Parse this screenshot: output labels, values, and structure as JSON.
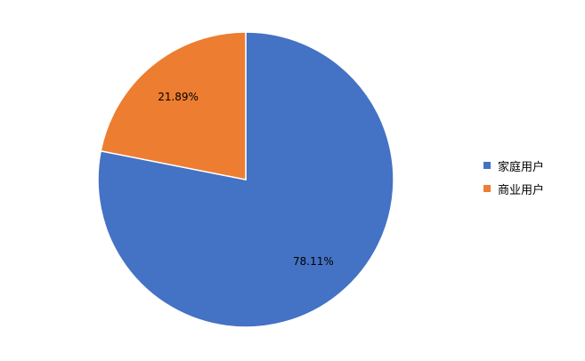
{
  "chart_data": {
    "type": "pie",
    "categories": [
      "家庭用户",
      "商业用户"
    ],
    "values": [
      78.11,
      21.89
    ],
    "value_labels": [
      "78.11%",
      "21.89%"
    ],
    "colors": [
      "#4472C4",
      "#ED7D31"
    ],
    "legend_position": "right"
  }
}
